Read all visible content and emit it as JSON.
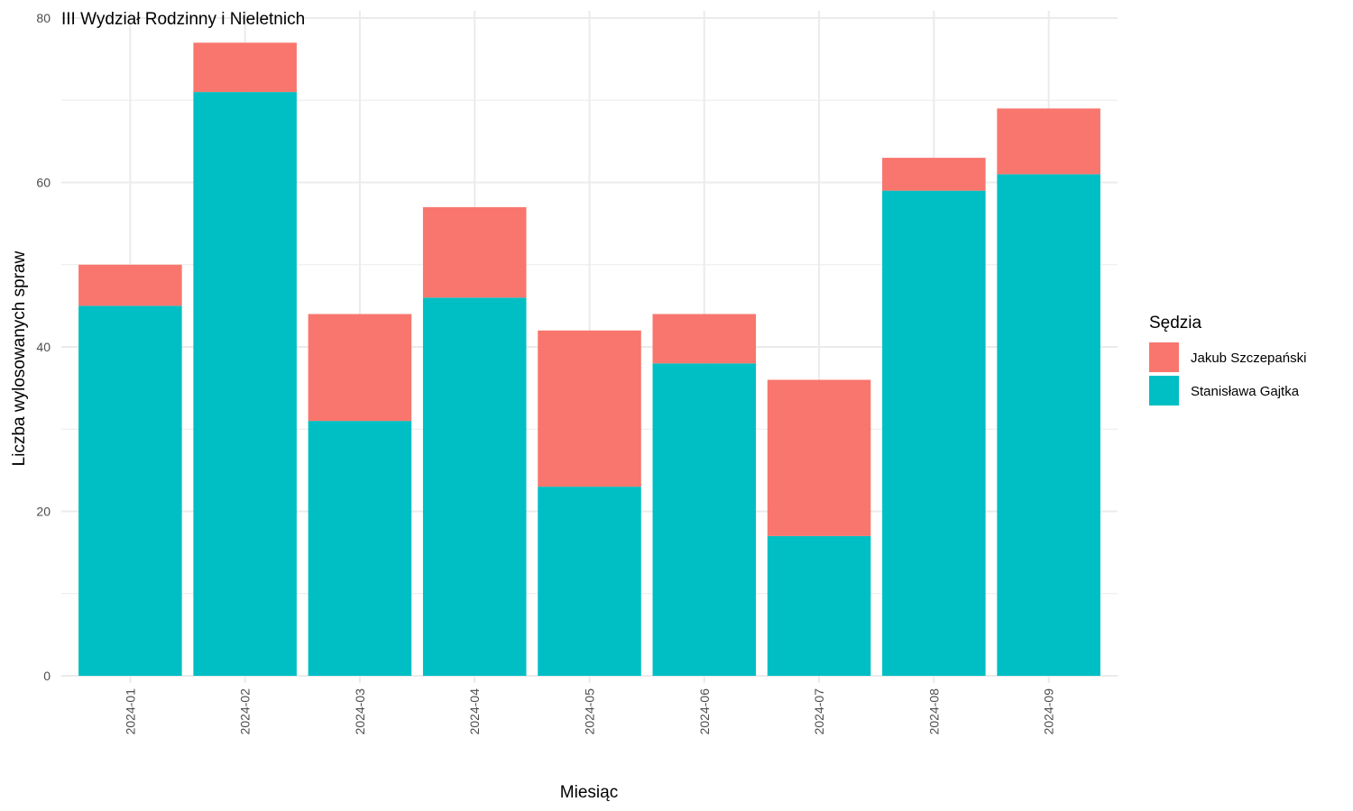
{
  "chart_data": {
    "type": "bar",
    "stacked": true,
    "title": "III Wydział Rodzinny i Nieletnich",
    "xlabel": "Miesiąc",
    "ylabel": "Liczba wylosowanych spraw",
    "ylim": [
      0,
      80
    ],
    "yticks": [
      0,
      20,
      40,
      60,
      80
    ],
    "grid": true,
    "legend_position": "right",
    "legend_title": "Sędzia",
    "categories": [
      "2024-01",
      "2024-02",
      "2024-03",
      "2024-04",
      "2024-05",
      "2024-06",
      "2024-07",
      "2024-08",
      "2024-09"
    ],
    "series": [
      {
        "name": "Stanisława Gajtka",
        "color": "#00BFC4",
        "values": [
          45,
          71,
          31,
          46,
          23,
          38,
          17,
          59,
          61
        ]
      },
      {
        "name": "Jakub Szczepański",
        "color": "#F8766D",
        "values": [
          5,
          6,
          13,
          11,
          19,
          6,
          19,
          4,
          8
        ]
      }
    ],
    "legend_order": [
      "Jakub Szczepański",
      "Stanisława Gajtka"
    ]
  }
}
